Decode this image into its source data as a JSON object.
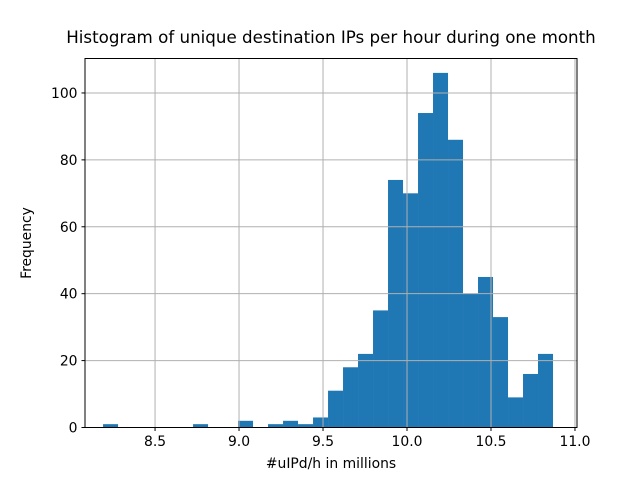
{
  "chart_data": {
    "type": "bar",
    "subtype": "histogram",
    "title": "Histogram of unique destination IPs per hour during one month",
    "xlabel": "#uIPd/h in millions",
    "ylabel": "Frequency",
    "bin_start": 8.1905,
    "bin_width": 0.08929,
    "frequencies": [
      1,
      0,
      0,
      0,
      0,
      0,
      1,
      0,
      0,
      2,
      0,
      1,
      2,
      1,
      3,
      11,
      18,
      22,
      35,
      74,
      70,
      94,
      106,
      86,
      40,
      45,
      33,
      9,
      16,
      22
    ],
    "x_ticks": [
      8.5,
      9.0,
      9.5,
      10.0,
      10.5,
      11.0
    ],
    "x_tick_labels": [
      "8.5",
      "9.0",
      "9.5",
      "10.0",
      "10.5",
      "11.0"
    ],
    "y_ticks": [
      0,
      20,
      40,
      60,
      80,
      100
    ],
    "y_tick_labels": [
      "0",
      "20",
      "40",
      "60",
      "80",
      "100"
    ],
    "xlim": [
      8.083,
      11.012
    ],
    "ylim": [
      0,
      110.3
    ],
    "grid": true,
    "legend": null,
    "colors": {
      "bar": "#1f77b4",
      "grid": "#b0b0b0",
      "spine": "#000000",
      "text": "#000000",
      "background": "#ffffff"
    }
  }
}
